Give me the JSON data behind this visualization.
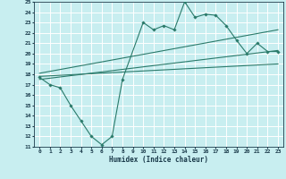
{
  "xlabel": "Humidex (Indice chaleur)",
  "bg_color": "#c8eef0",
  "grid_color": "#ffffff",
  "line_color": "#2a7a6a",
  "xlim": [
    -0.5,
    23.5
  ],
  "ylim": [
    11,
    25
  ],
  "xticks": [
    0,
    1,
    2,
    3,
    4,
    5,
    6,
    7,
    8,
    9,
    10,
    11,
    12,
    13,
    14,
    15,
    16,
    17,
    18,
    19,
    20,
    21,
    22,
    23
  ],
  "yticks": [
    11,
    12,
    13,
    14,
    15,
    16,
    17,
    18,
    19,
    20,
    21,
    22,
    23,
    24,
    25
  ],
  "curve_x": [
    0,
    1,
    2,
    3,
    4,
    5,
    6,
    7,
    8,
    10,
    11,
    12,
    13,
    14,
    15,
    16,
    17,
    18,
    19,
    20,
    21,
    22,
    23
  ],
  "curve_y": [
    17.7,
    17.0,
    16.7,
    15.0,
    13.5,
    12.0,
    11.2,
    12.0,
    17.5,
    23.0,
    22.3,
    22.7,
    22.3,
    25.0,
    23.5,
    23.8,
    23.7,
    22.7,
    21.3,
    20.0,
    21.0,
    20.2,
    20.2
  ],
  "line1_x": [
    0,
    23
  ],
  "line1_y": [
    17.5,
    20.3
  ],
  "line2_x": [
    0,
    23
  ],
  "line2_y": [
    17.8,
    19.0
  ],
  "line3_x": [
    0,
    23
  ],
  "line3_y": [
    18.1,
    22.3
  ]
}
